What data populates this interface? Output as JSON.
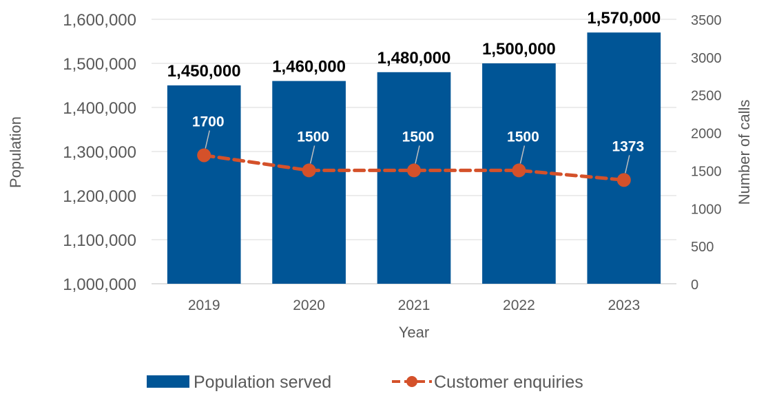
{
  "chart_data": {
    "type": "bar",
    "categories": [
      "2019",
      "2020",
      "2021",
      "2022",
      "2023"
    ],
    "xlabel": "Year",
    "ylabel": "Population",
    "y2label": "Number of calls",
    "ylim": [
      1000000,
      1600000
    ],
    "y_ticks": [
      "1,000,000",
      "1,100,000",
      "1,200,000",
      "1,300,000",
      "1,400,000",
      "1,500,000",
      "1,600,000"
    ],
    "y2lim": [
      0,
      3500
    ],
    "y2_ticks": [
      "0",
      "500",
      "1000",
      "1500",
      "2000",
      "2500",
      "3000",
      "3500"
    ],
    "grid": true,
    "legend_position": "bottom",
    "series": [
      {
        "name": "Population served",
        "type": "bar",
        "axis": "left",
        "color": "#005596",
        "values": [
          1450000,
          1460000,
          1480000,
          1500000,
          1570000
        ],
        "labels": [
          "1,450,000",
          "1,460,000",
          "1,480,000",
          "1,500,000",
          "1,570,000"
        ]
      },
      {
        "name": "Customer enquiries",
        "type": "line",
        "axis": "right",
        "style": "dashed",
        "color": "#D4512A",
        "values": [
          1700,
          1500,
          1500,
          1500,
          1373
        ],
        "labels": [
          "1700",
          "1500",
          "1500",
          "1500",
          "1373"
        ]
      }
    ]
  }
}
